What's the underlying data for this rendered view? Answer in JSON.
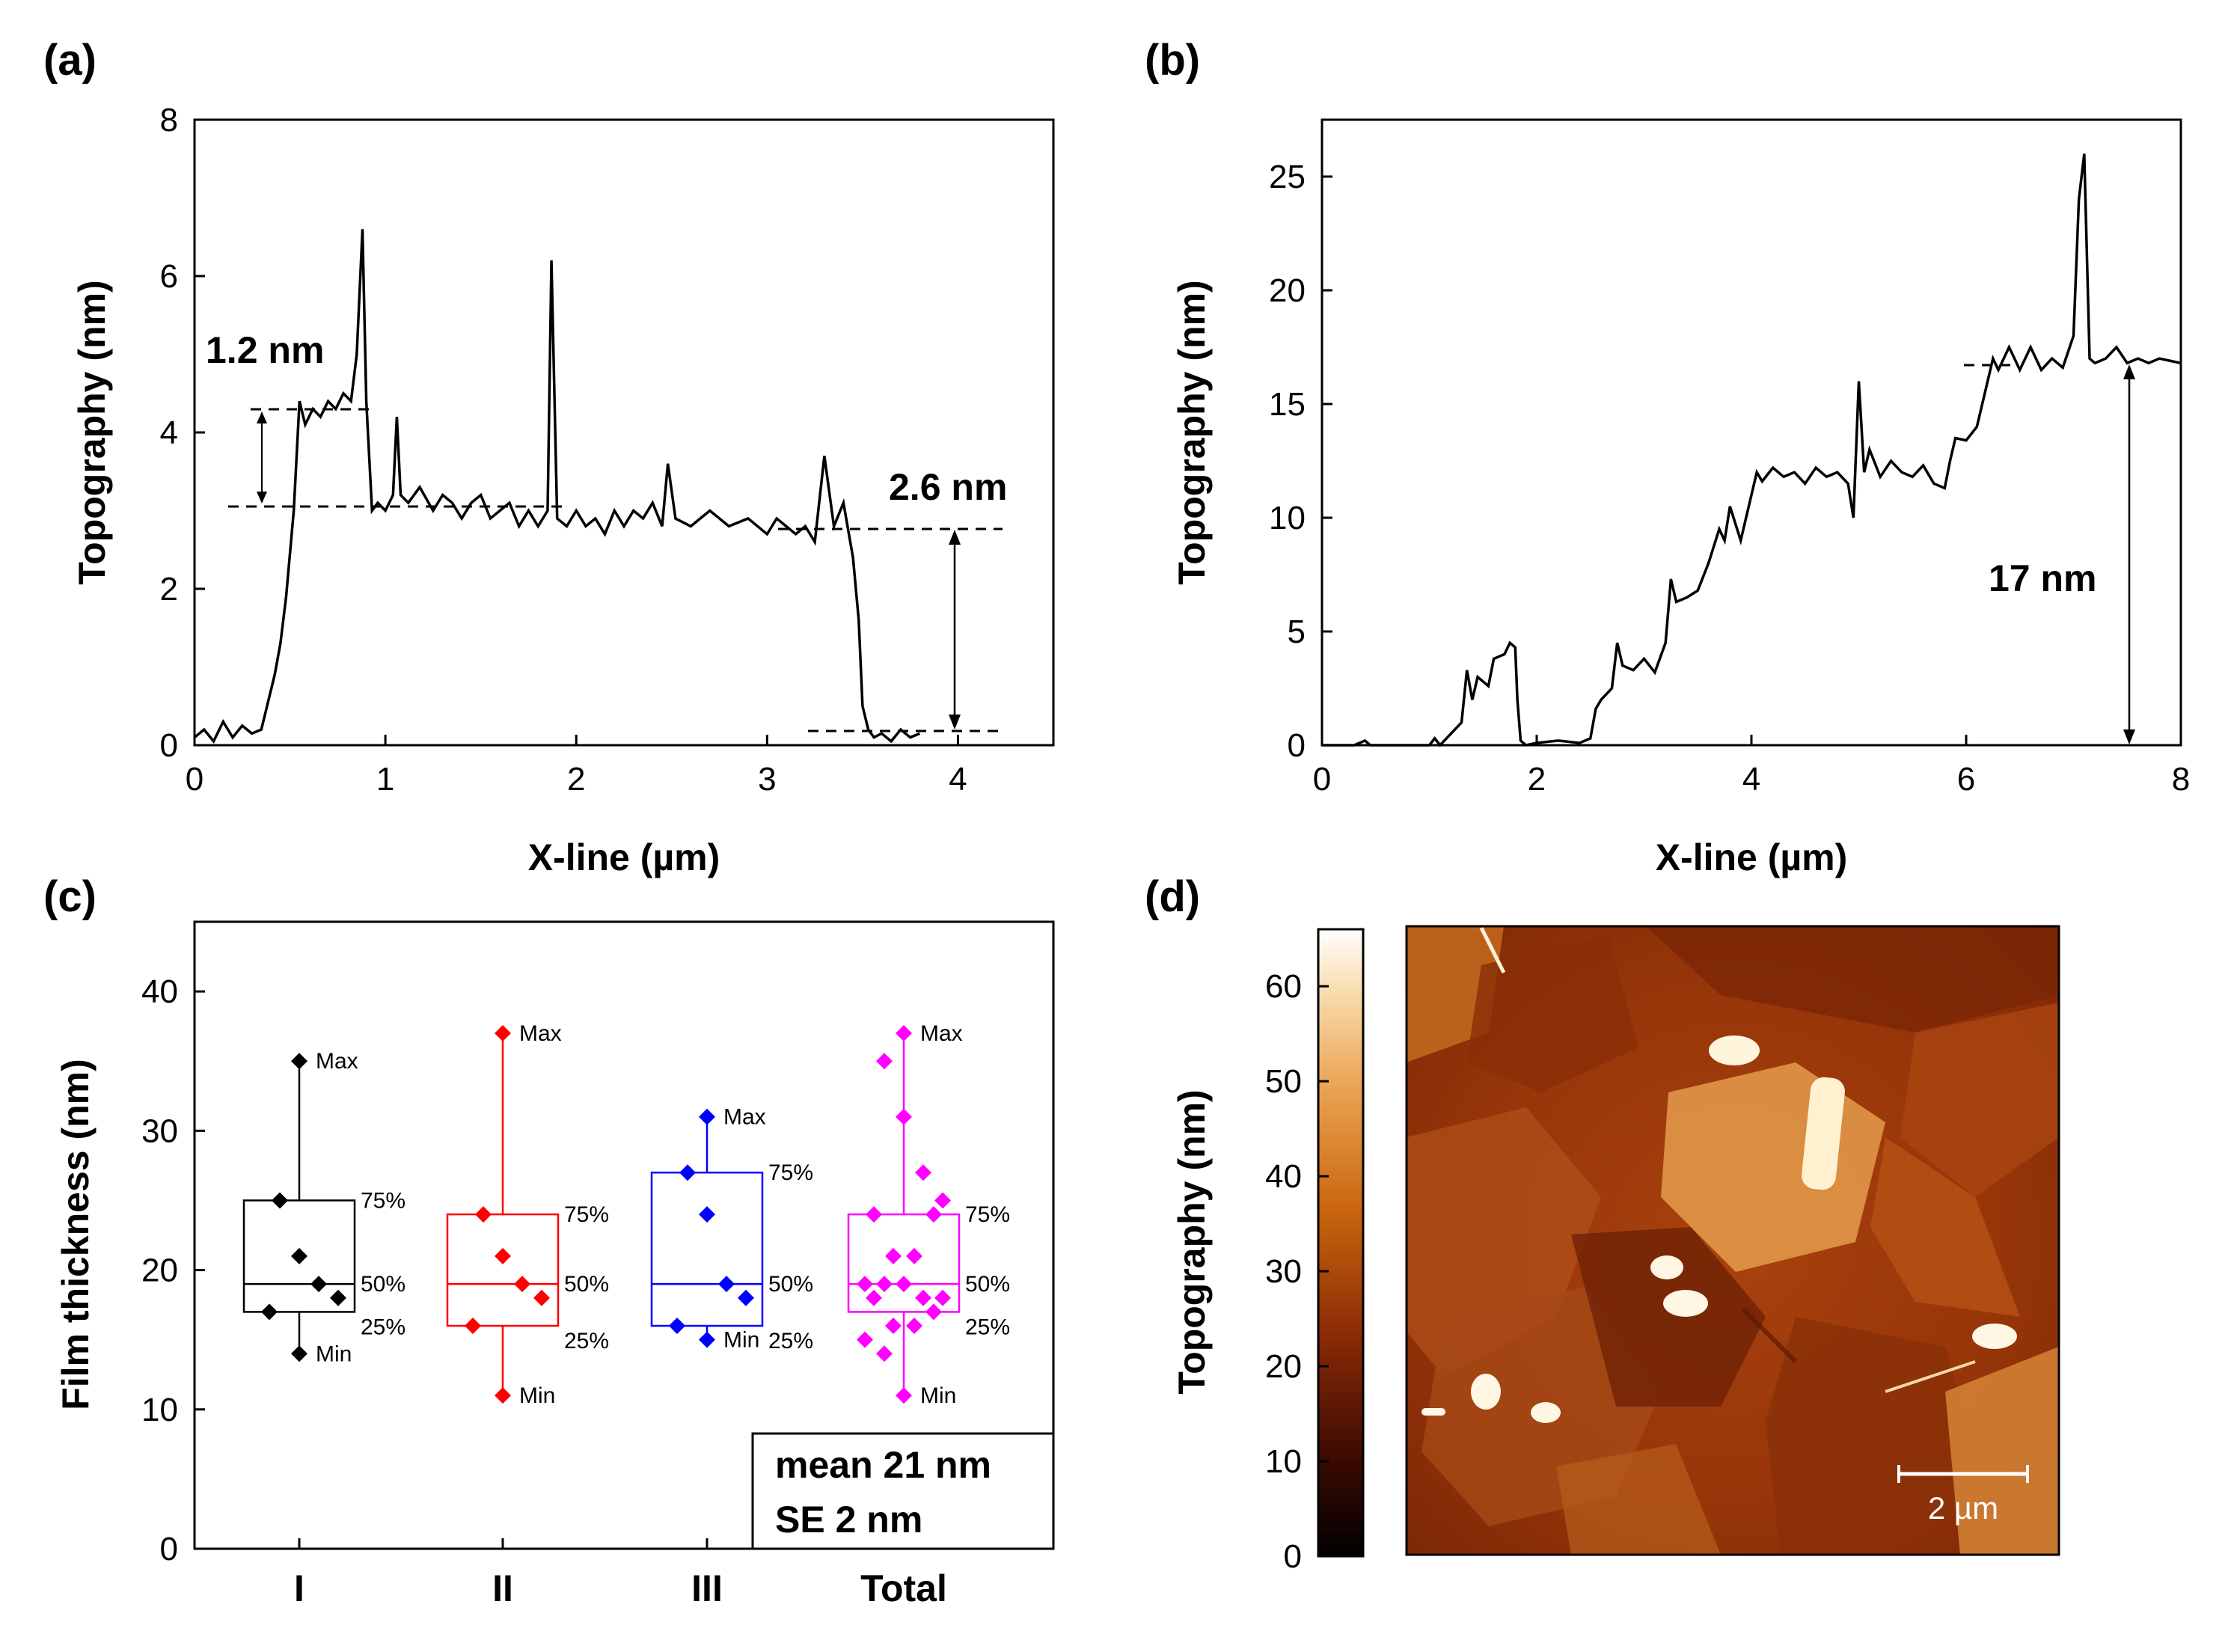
{
  "panels": {
    "a": "(a)",
    "b": "(b)",
    "c": "(c)",
    "d": "(d)"
  },
  "colors": {
    "line": "#000000",
    "groupI": "#000000",
    "groupII": "#ff0000",
    "groupIII": "#0000ff",
    "total": "#ff00ff"
  },
  "chart_data": [
    {
      "id": "a",
      "type": "line",
      "xlabel": "X-line (µm)",
      "ylabel": "Topography (nm)",
      "xlim": [
        0,
        4.5
      ],
      "ylim": [
        0,
        8
      ],
      "xticks": [
        0,
        1,
        2,
        3,
        4
      ],
      "yticks": [
        0,
        2,
        4,
        6,
        8
      ],
      "x": [
        0,
        0.05,
        0.1,
        0.15,
        0.2,
        0.25,
        0.3,
        0.35,
        0.38,
        0.42,
        0.45,
        0.48,
        0.52,
        0.55,
        0.58,
        0.62,
        0.66,
        0.7,
        0.74,
        0.78,
        0.82,
        0.85,
        0.88,
        0.9,
        0.93,
        0.96,
        1.0,
        1.04,
        1.06,
        1.08,
        1.12,
        1.18,
        1.25,
        1.3,
        1.35,
        1.4,
        1.45,
        1.5,
        1.55,
        1.6,
        1.65,
        1.7,
        1.75,
        1.8,
        1.85,
        1.87,
        1.9,
        1.95,
        2.0,
        2.05,
        2.1,
        2.15,
        2.2,
        2.25,
        2.3,
        2.35,
        2.4,
        2.45,
        2.48,
        2.52,
        2.6,
        2.7,
        2.8,
        2.9,
        3.0,
        3.05,
        3.1,
        3.15,
        3.2,
        3.25,
        3.3,
        3.35,
        3.4,
        3.45,
        3.48,
        3.5,
        3.53,
        3.56,
        3.6,
        3.65,
        3.7,
        3.75,
        3.8
      ],
      "y": [
        0.1,
        0.2,
        0.05,
        0.3,
        0.1,
        0.25,
        0.15,
        0.2,
        0.5,
        0.9,
        1.3,
        1.9,
        3.0,
        4.4,
        4.1,
        4.3,
        4.2,
        4.4,
        4.3,
        4.5,
        4.4,
        5.0,
        6.6,
        4.4,
        3.0,
        3.1,
        3.0,
        3.2,
        4.2,
        3.2,
        3.1,
        3.3,
        3.0,
        3.2,
        3.1,
        2.9,
        3.1,
        3.2,
        2.9,
        3.0,
        3.1,
        2.8,
        3.0,
        2.8,
        3.0,
        6.2,
        2.9,
        2.8,
        3.0,
        2.8,
        2.9,
        2.7,
        3.0,
        2.8,
        3.0,
        2.9,
        3.1,
        2.8,
        3.6,
        2.9,
        2.8,
        3.0,
        2.8,
        2.9,
        2.7,
        2.9,
        2.8,
        2.7,
        2.8,
        2.6,
        3.7,
        2.8,
        3.1,
        2.4,
        1.6,
        0.5,
        0.2,
        0.1,
        0.15,
        0.05,
        0.2,
        0.1,
        0.15
      ],
      "annotations": [
        "1.2 nm",
        "2.6 nm"
      ]
    },
    {
      "id": "b",
      "type": "line",
      "xlabel": "X-line (µm)",
      "ylabel": "Topography (nm)",
      "xlim": [
        0,
        8
      ],
      "ylim": [
        0,
        27.5
      ],
      "xticks": [
        0,
        2,
        4,
        6,
        8
      ],
      "yticks": [
        0,
        5,
        10,
        15,
        20,
        25
      ],
      "x": [
        0,
        0.3,
        0.4,
        0.45,
        0.5,
        1.0,
        1.05,
        1.1,
        1.3,
        1.35,
        1.4,
        1.45,
        1.55,
        1.6,
        1.7,
        1.75,
        1.8,
        1.82,
        1.85,
        1.9,
        2.0,
        2.2,
        2.4,
        2.5,
        2.55,
        2.6,
        2.7,
        2.75,
        2.8,
        2.9,
        3.0,
        3.1,
        3.2,
        3.25,
        3.3,
        3.4,
        3.5,
        3.6,
        3.7,
        3.75,
        3.8,
        3.9,
        4.0,
        4.05,
        4.1,
        4.2,
        4.3,
        4.4,
        4.5,
        4.6,
        4.7,
        4.8,
        4.9,
        4.95,
        5.0,
        5.05,
        5.1,
        5.2,
        5.3,
        5.4,
        5.5,
        5.6,
        5.7,
        5.8,
        5.85,
        5.9,
        6.0,
        6.1,
        6.2,
        6.25,
        6.3,
        6.4,
        6.5,
        6.6,
        6.7,
        6.8,
        6.9,
        7.0,
        7.05,
        7.1,
        7.15,
        7.2,
        7.3,
        7.4,
        7.5,
        7.6,
        7.7,
        7.8,
        7.9,
        8.0
      ],
      "y": [
        0,
        0,
        0.2,
        0,
        0,
        0,
        0.3,
        0,
        1.0,
        3.3,
        2.0,
        3.0,
        2.6,
        3.8,
        4.0,
        4.5,
        4.3,
        2.0,
        0.2,
        0,
        0.1,
        0.2,
        0.1,
        0.3,
        1.6,
        2.0,
        2.5,
        4.5,
        3.5,
        3.3,
        3.8,
        3.2,
        4.5,
        7.3,
        6.3,
        6.5,
        6.8,
        8.0,
        9.5,
        9.0,
        10.5,
        9.0,
        11.0,
        12.0,
        11.6,
        12.2,
        11.8,
        12.0,
        11.5,
        12.2,
        11.8,
        12.0,
        11.5,
        10.0,
        16.0,
        12.0,
        13.0,
        11.8,
        12.5,
        12.0,
        11.8,
        12.3,
        11.5,
        11.3,
        12.5,
        13.5,
        13.4,
        14.0,
        16.0,
        17.0,
        16.5,
        17.5,
        16.5,
        17.5,
        16.5,
        17.0,
        16.6,
        18.0,
        24.0,
        26.0,
        17.0,
        16.8,
        17.0,
        17.5,
        16.8,
        17.0,
        16.8,
        17.0,
        16.9,
        16.8
      ],
      "annotations": [
        "17 nm"
      ]
    },
    {
      "id": "c",
      "type": "box",
      "ylabel": "Film thickness (nm)",
      "ylim": [
        0,
        45
      ],
      "yticks": [
        0,
        10,
        20,
        30,
        40
      ],
      "categories": [
        "I",
        "II",
        "III",
        "Total"
      ],
      "series": [
        {
          "name": "I",
          "points": [
            35,
            25,
            21,
            19,
            18,
            17,
            14
          ],
          "q1": 17,
          "median": 19,
          "q3": 25,
          "min": 14,
          "max": 35
        },
        {
          "name": "II",
          "points": [
            37,
            24,
            21,
            19,
            18,
            16,
            11
          ],
          "q1": 16,
          "median": 19,
          "q3": 24,
          "min": 11,
          "max": 37
        },
        {
          "name": "III",
          "points": [
            31,
            27,
            24,
            19,
            18,
            16,
            15
          ],
          "q1": 16,
          "median": 19,
          "q3": 27,
          "min": 15,
          "max": 31
        },
        {
          "name": "Total",
          "points": [
            37,
            35,
            31,
            27,
            25,
            24,
            24,
            21,
            21,
            19,
            19,
            19,
            18,
            18,
            18,
            17,
            16,
            16,
            15,
            14,
            11
          ],
          "q1": 17,
          "median": 19,
          "q3": 24,
          "min": 11,
          "max": 37
        }
      ],
      "box_labels": {
        "max": "Max",
        "min": "Min",
        "p75": "75%",
        "p50": "50%",
        "p25": "25%"
      },
      "stats": [
        "mean 21 nm",
        "SE 2 nm"
      ]
    },
    {
      "id": "d",
      "type": "heatmap",
      "colorbar_label": "Topography (nm)",
      "colorbar_ticks": [
        0,
        10,
        20,
        30,
        40,
        50,
        60
      ],
      "scalebar": "2 µm"
    }
  ]
}
